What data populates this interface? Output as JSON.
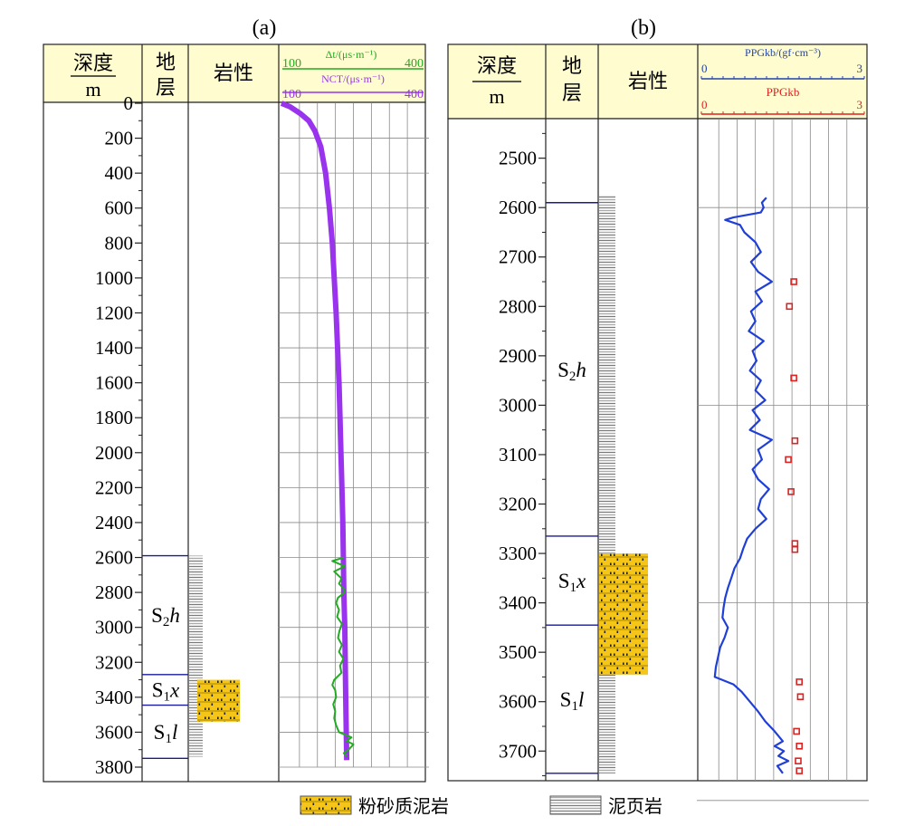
{
  "chart_data": [
    {
      "type": "line",
      "panel_label": "(a)",
      "column_headers": {
        "depth": "深度",
        "depth_unit": "m",
        "formation": "地层",
        "lithology": "岩性"
      },
      "depth_axis": {
        "range": [
          0,
          3800
        ],
        "ticks": [
          0,
          200,
          400,
          600,
          800,
          1000,
          1200,
          1400,
          1600,
          1800,
          2000,
          2200,
          2400,
          2600,
          2800,
          3000,
          3200,
          3400,
          3600,
          3800
        ],
        "reversed": true
      },
      "curve_scales": [
        {
          "label": "Δt/(μs·m⁻¹)",
          "min": 100,
          "max": 400,
          "min_label": "100",
          "max_label": "400",
          "color": "#22aa22"
        },
        {
          "label": "NCT/(μs·m⁻¹)",
          "min": 100,
          "max": 400,
          "min_label": "100",
          "max_label": "400",
          "color": "#9933ee"
        }
      ],
      "formations": [
        {
          "name_main": "S",
          "name_sub": "2",
          "name_italic": "h",
          "top": 2590,
          "bottom": 3270
        },
        {
          "name_main": "S",
          "name_sub": "1",
          "name_italic": "x",
          "top": 3270,
          "bottom": 3445
        },
        {
          "name_main": "S",
          "name_sub": "1",
          "name_italic": "l",
          "top": 3445,
          "bottom": 3750
        }
      ],
      "lithology": [
        {
          "type": "shale",
          "top": 2590,
          "bottom": 3740
        },
        {
          "type": "silty_mudstone",
          "top": 3300,
          "bottom": 3540
        }
      ],
      "series": [
        {
          "name": "NCT",
          "color": "#9933ee",
          "points": [
            [
              0,
              100
            ],
            [
              20,
              118
            ],
            [
              60,
              140
            ],
            [
              100,
              157
            ],
            [
              160,
              170
            ],
            [
              250,
              182
            ],
            [
              400,
              192
            ],
            [
              600,
              200
            ],
            [
              800,
              206
            ],
            [
              1000,
              210
            ],
            [
              1200,
              214
            ],
            [
              1400,
              217
            ],
            [
              1600,
              220
            ],
            [
              1800,
              222
            ],
            [
              2000,
              224
            ],
            [
              2200,
              226
            ],
            [
              2400,
              228
            ],
            [
              2600,
              229
            ],
            [
              2800,
              230
            ],
            [
              3000,
              232
            ],
            [
              3200,
              233
            ],
            [
              3400,
              234
            ],
            [
              3600,
              235
            ],
            [
              3760,
              236
            ]
          ]
        },
        {
          "name": "Δt",
          "color": "#22aa22",
          "points": [
            [
              2600,
              230
            ],
            [
              2620,
              206
            ],
            [
              2650,
              232
            ],
            [
              2680,
              210
            ],
            [
              2720,
              225
            ],
            [
              2750,
              220
            ],
            [
              2780,
              230
            ],
            [
              2800,
              232
            ],
            [
              2830,
              218
            ],
            [
              2860,
              214
            ],
            [
              2900,
              220
            ],
            [
              2940,
              216
            ],
            [
              2980,
              226
            ],
            [
              3020,
              221
            ],
            [
              3060,
              218
            ],
            [
              3100,
              226
            ],
            [
              3140,
              220
            ],
            [
              3180,
              229
            ],
            [
              3220,
              222
            ],
            [
              3260,
              225
            ],
            [
              3300,
              210
            ],
            [
              3330,
              206
            ],
            [
              3360,
              212
            ],
            [
              3400,
              214
            ],
            [
              3440,
              208
            ],
            [
              3480,
              212
            ],
            [
              3520,
              210
            ],
            [
              3560,
              214
            ],
            [
              3600,
              220
            ],
            [
              3630,
              246
            ],
            [
              3650,
              236
            ],
            [
              3670,
              250
            ],
            [
              3700,
              240
            ],
            [
              3720,
              230
            ],
            [
              3740,
              236
            ]
          ]
        }
      ]
    },
    {
      "type": "line",
      "panel_label": "(b)",
      "column_headers": {
        "depth": "深度",
        "depth_unit": "m",
        "formation": "地层",
        "lithology": "岩性"
      },
      "depth_axis": {
        "range": [
          2420,
          3760
        ],
        "ticks": [
          2500,
          2600,
          2700,
          2800,
          2900,
          3000,
          3100,
          3200,
          3300,
          3400,
          3500,
          3600,
          3700
        ],
        "reversed": true
      },
      "curve_scales": [
        {
          "label": "PPGkb/(gf·cm⁻³)",
          "min": 0,
          "max": 3,
          "min_label": "0",
          "max_label": "3",
          "color": "#2244aa"
        },
        {
          "label": "PPGkb",
          "min": 0,
          "max": 3,
          "min_label": "0",
          "max_label": "3",
          "color": "#dd2222"
        }
      ],
      "formations": [
        {
          "name_main": "S",
          "name_sub": "2",
          "name_italic": "h",
          "top": 2590,
          "bottom": 3265
        },
        {
          "name_main": "S",
          "name_sub": "1",
          "name_italic": "x",
          "top": 3265,
          "bottom": 3445
        },
        {
          "name_main": "S",
          "name_sub": "1",
          "name_italic": "l",
          "top": 3445,
          "bottom": 3745
        }
      ],
      "lithology": [
        {
          "type": "shale",
          "top": 2575,
          "bottom": 3745
        },
        {
          "type": "silty_mudstone",
          "top": 3300,
          "bottom": 3545
        }
      ],
      "series": [
        {
          "name": "PPGkb (curve)",
          "color": "#1f3fd6",
          "points": [
            [
              2580,
              1.2
            ],
            [
              2590,
              1.12
            ],
            [
              2600,
              1.15
            ],
            [
              2610,
              1.1
            ],
            [
              2620,
              0.6
            ],
            [
              2625,
              0.45
            ],
            [
              2635,
              0.72
            ],
            [
              2650,
              0.8
            ],
            [
              2670,
              1.0
            ],
            [
              2690,
              1.1
            ],
            [
              2710,
              0.92
            ],
            [
              2730,
              1.05
            ],
            [
              2750,
              1.3
            ],
            [
              2770,
              1.0
            ],
            [
              2790,
              1.12
            ],
            [
              2810,
              0.92
            ],
            [
              2830,
              1.0
            ],
            [
              2850,
              0.88
            ],
            [
              2870,
              1.15
            ],
            [
              2890,
              0.95
            ],
            [
              2910,
              1.02
            ],
            [
              2930,
              0.9
            ],
            [
              2950,
              1.1
            ],
            [
              2970,
              1.0
            ],
            [
              2990,
              1.18
            ],
            [
              3010,
              0.95
            ],
            [
              3030,
              1.08
            ],
            [
              3050,
              0.9
            ],
            [
              3070,
              1.3
            ],
            [
              3090,
              1.05
            ],
            [
              3110,
              1.12
            ],
            [
              3130,
              0.95
            ],
            [
              3150,
              1.05
            ],
            [
              3170,
              1.25
            ],
            [
              3190,
              1.1
            ],
            [
              3210,
              1.05
            ],
            [
              3230,
              1.2
            ],
            [
              3250,
              1.0
            ],
            [
              3270,
              0.85
            ],
            [
              3290,
              0.78
            ],
            [
              3310,
              0.72
            ],
            [
              3330,
              0.62
            ],
            [
              3350,
              0.56
            ],
            [
              3370,
              0.5
            ],
            [
              3390,
              0.45
            ],
            [
              3410,
              0.42
            ],
            [
              3430,
              0.4
            ],
            [
              3450,
              0.5
            ],
            [
              3470,
              0.44
            ],
            [
              3490,
              0.36
            ],
            [
              3510,
              0.32
            ],
            [
              3530,
              0.28
            ],
            [
              3550,
              0.26
            ],
            [
              3565,
              0.6
            ],
            [
              3580,
              0.75
            ],
            [
              3600,
              0.9
            ],
            [
              3620,
              1.05
            ],
            [
              3640,
              1.18
            ],
            [
              3660,
              1.35
            ],
            [
              3680,
              1.5
            ],
            [
              3690,
              1.35
            ],
            [
              3700,
              1.52
            ],
            [
              3710,
              1.42
            ],
            [
              3720,
              1.6
            ],
            [
              3730,
              1.4
            ],
            [
              3745,
              1.5
            ]
          ]
        },
        {
          "name": "PPGkb (points)",
          "color": "#dd2222",
          "points": [
            [
              2750,
              1.7
            ],
            [
              2800,
              1.62
            ],
            [
              2945,
              1.7
            ],
            [
              3072,
              1.72
            ],
            [
              3110,
              1.6
            ],
            [
              3175,
              1.65
            ],
            [
              3280,
              1.72
            ],
            [
              3292,
              1.72
            ],
            [
              3560,
              1.8
            ],
            [
              3590,
              1.82
            ],
            [
              3660,
              1.75
            ],
            [
              3690,
              1.8
            ],
            [
              3720,
              1.78
            ],
            [
              3740,
              1.8
            ]
          ]
        }
      ]
    }
  ],
  "legend": {
    "items": [
      {
        "type": "silty_mudstone",
        "label": "粉砂质泥岩"
      },
      {
        "type": "shale",
        "label": "泥页岩"
      }
    ],
    "placement": "bottom"
  },
  "colors": {
    "header_fill": "#fffdcf",
    "silty_mudstone": "#f5c518",
    "formation_boundary": "#1a1a99"
  }
}
